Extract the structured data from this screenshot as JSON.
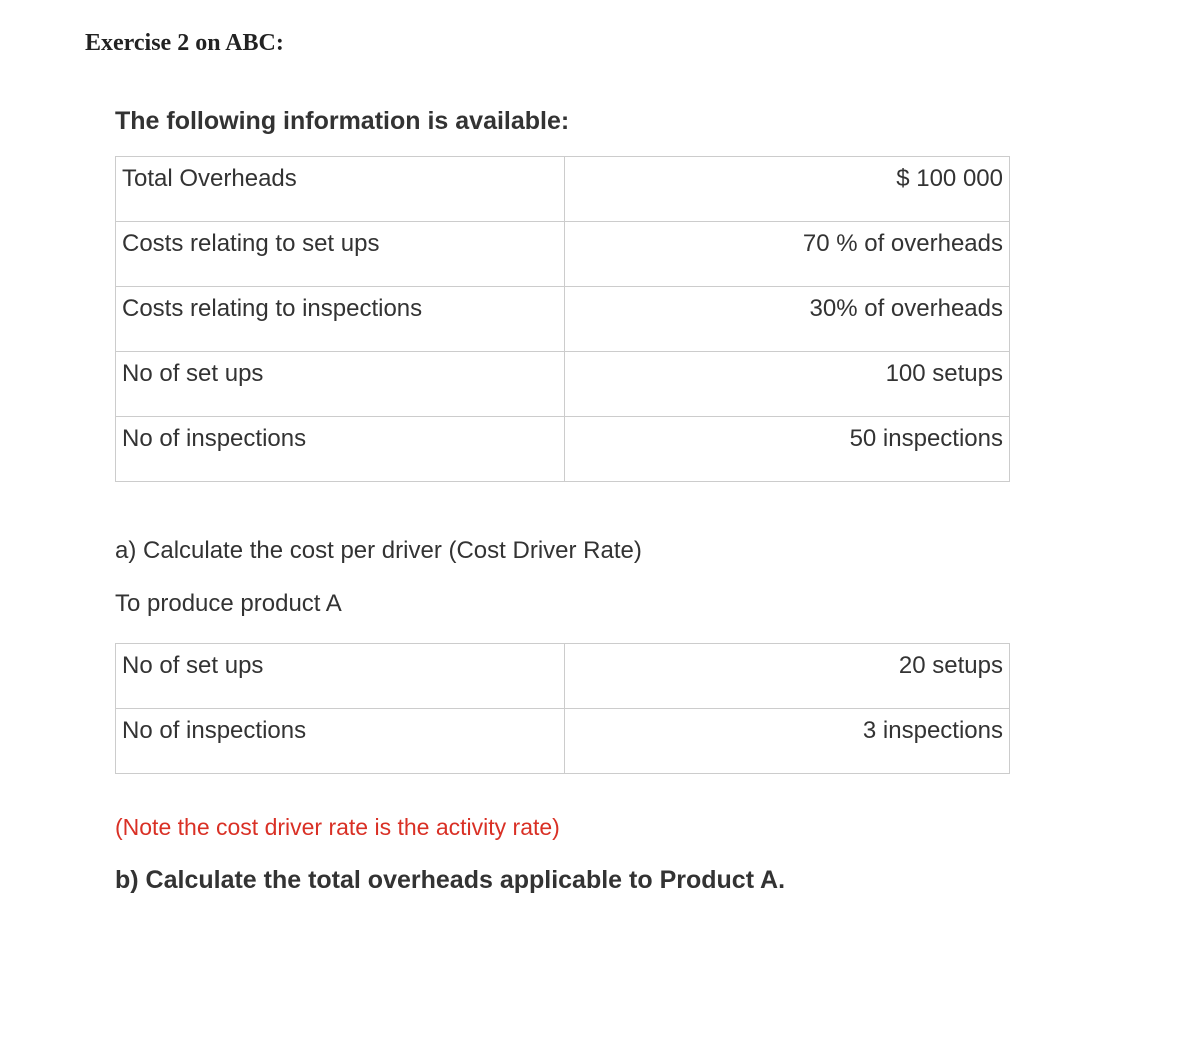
{
  "header": {
    "exercise_title": "Exercise 2 on ABC:"
  },
  "section1": {
    "subtitle": "The following information is available:",
    "table": {
      "type": "table",
      "border_color": "#cccccc",
      "text_color": "#333333",
      "font_size": 24,
      "rows": [
        {
          "label": "Total Overheads",
          "value": "$ 100 000"
        },
        {
          "label": "Costs relating to set ups",
          "value": "70 % of overheads"
        },
        {
          "label": "Costs relating to inspections",
          "value": "30% of overheads"
        },
        {
          "label": "No of set ups",
          "value": "100 setups"
        },
        {
          "label": "No of inspections",
          "value": "50 inspections"
        }
      ]
    }
  },
  "question_a": {
    "line1": "a) Calculate the cost per driver (Cost Driver Rate)",
    "line2": "To produce product A"
  },
  "section2": {
    "table": {
      "type": "table",
      "border_color": "#cccccc",
      "text_color": "#333333",
      "font_size": 24,
      "rows": [
        {
          "label": "No of set ups",
          "value": "20 setups"
        },
        {
          "label": "No of inspections",
          "value": "3 inspections"
        }
      ]
    }
  },
  "note": {
    "text": "(Note the cost driver rate is the activity rate)",
    "color": "#d93025"
  },
  "question_b": {
    "text": "b) Calculate the total overheads applicable to Product A."
  }
}
